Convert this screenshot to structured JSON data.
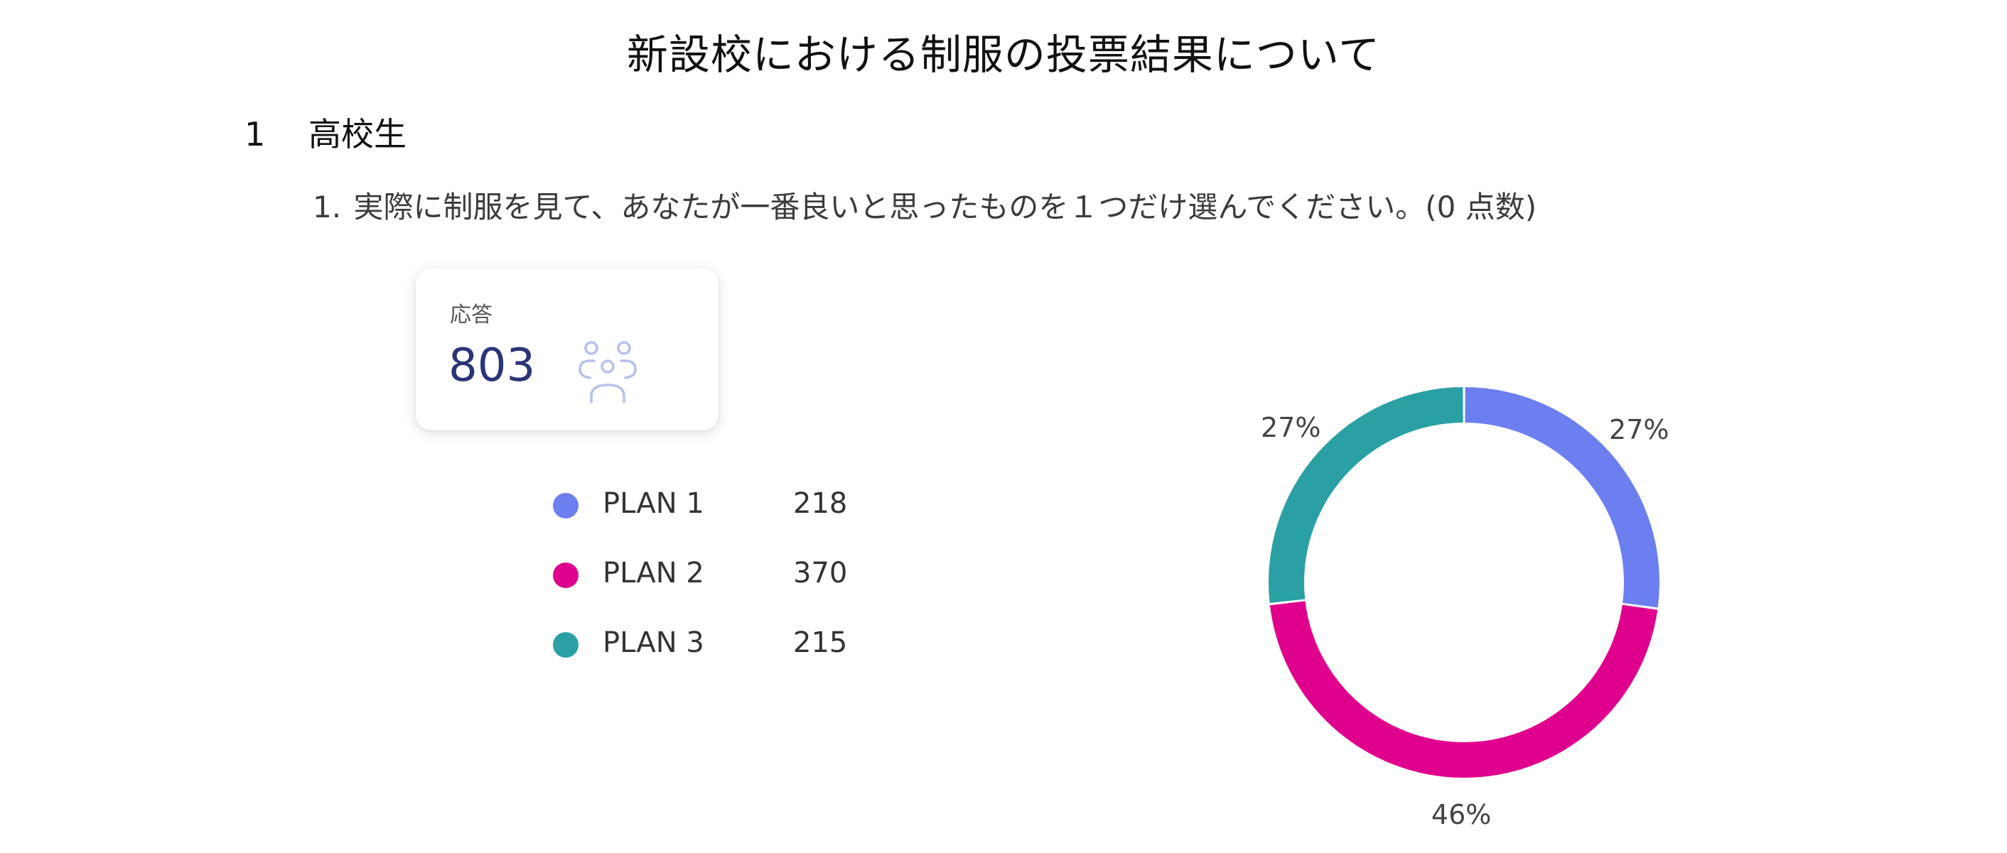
{
  "document": {
    "title": "新設校における制服の投票結果について"
  },
  "section": {
    "number": "1",
    "title": "高校生"
  },
  "question": {
    "number": "1.",
    "text": "実際に制服を見て、あなたが一番良いと思ったものを１つだけ選んでください。(0 点数)"
  },
  "summary": {
    "label": "応答",
    "count": "803",
    "icon": "people-icon"
  },
  "chart_data": {
    "type": "pie",
    "style": "donut",
    "categories": [
      "PLAN 1",
      "PLAN 2",
      "PLAN 3"
    ],
    "values": [
      218,
      370,
      215
    ],
    "percent_labels": [
      "27%",
      "46%",
      "27%"
    ],
    "colors": [
      "#6b7ff0",
      "#e0008e",
      "#2aa0a4"
    ],
    "legend_position": "left"
  }
}
